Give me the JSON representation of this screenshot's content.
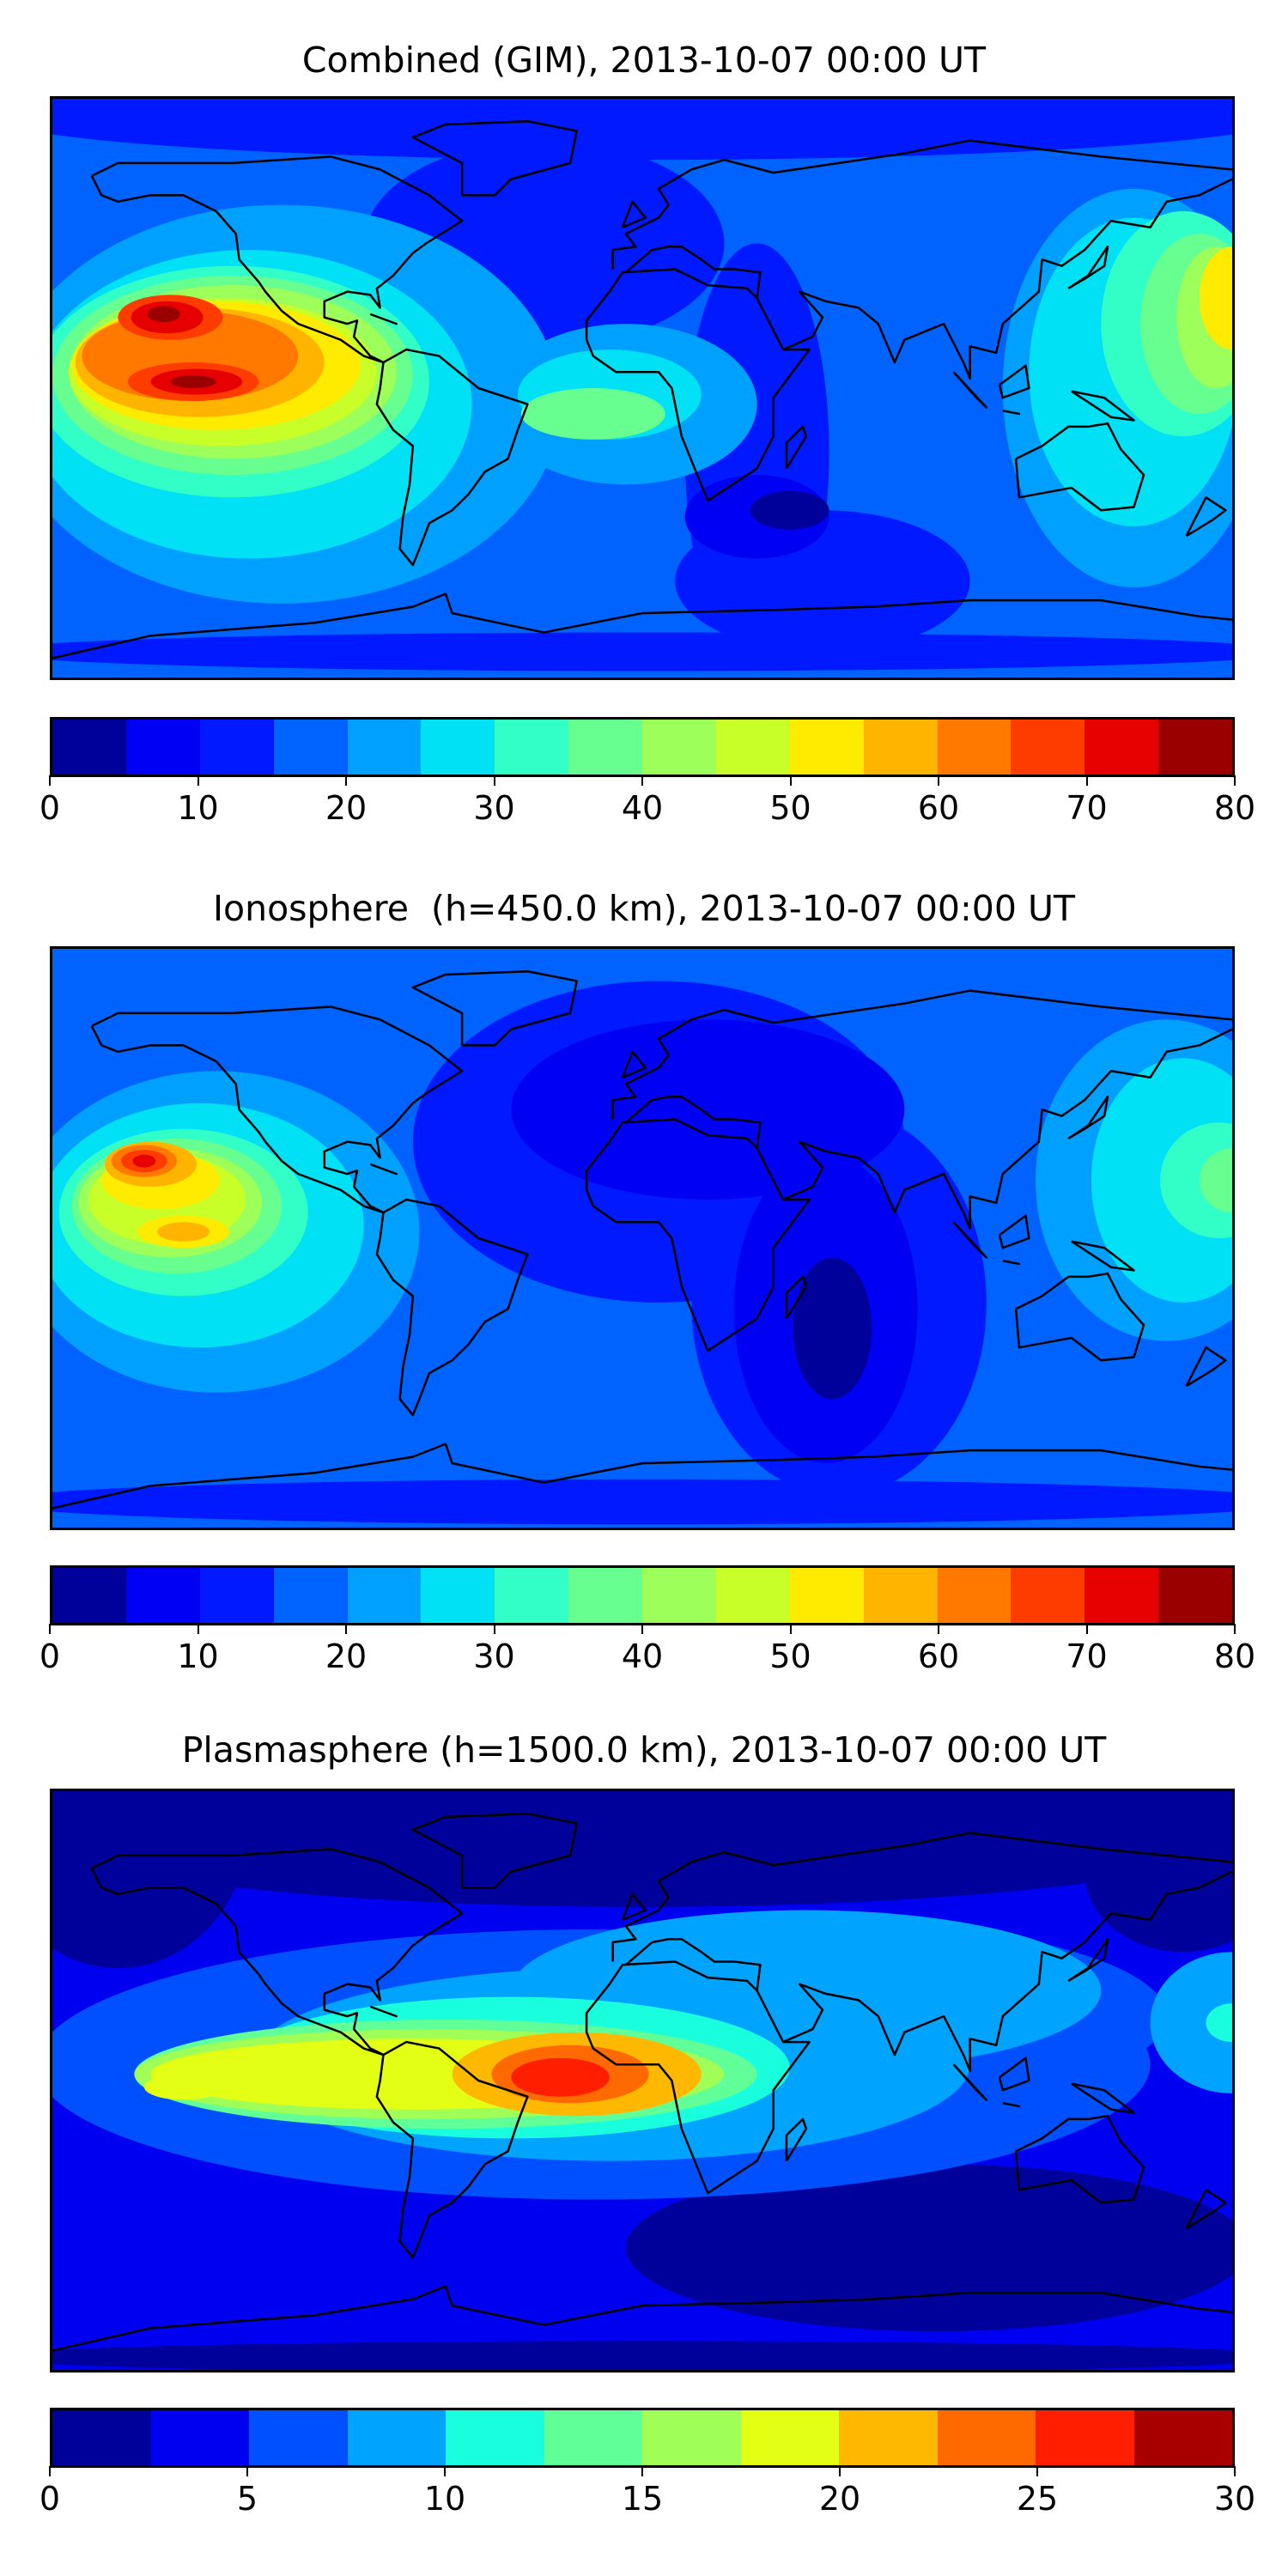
{
  "chart_data": [
    {
      "type": "heatmap",
      "title": "Combined (GIM), 2013-10-07 00:00 UT",
      "colorbar": {
        "ticks": [
          "0",
          "10",
          "20",
          "30",
          "40",
          "50",
          "60",
          "70",
          "80"
        ],
        "range": [
          0,
          80
        ],
        "levels": [
          0,
          5,
          10,
          15,
          20,
          25,
          30,
          35,
          40,
          45,
          50,
          55,
          60,
          65,
          70,
          75,
          80
        ],
        "colors": [
          "#00009a",
          "#0000f5",
          "#0019ff",
          "#0062ff",
          "#00a0ff",
          "#00e1f5",
          "#32ffc8",
          "#66ff90",
          "#9cff5a",
          "#c8ff28",
          "#ffeb00",
          "#ffb400",
          "#ff7800",
          "#ff3c00",
          "#e60000",
          "#9b0000"
        ]
      }
    },
    {
      "type": "heatmap",
      "title": "Ionosphere  (h=450.0 km), 2013-10-07 00:00 UT",
      "colorbar": {
        "ticks": [
          "0",
          "10",
          "20",
          "30",
          "40",
          "50",
          "60",
          "70",
          "80"
        ],
        "range": [
          0,
          80
        ],
        "levels": [
          0,
          5,
          10,
          15,
          20,
          25,
          30,
          35,
          40,
          45,
          50,
          55,
          60,
          65,
          70,
          75,
          80
        ],
        "colors": [
          "#00009a",
          "#0000f5",
          "#0019ff",
          "#0062ff",
          "#00a0ff",
          "#00e1f5",
          "#32ffc8",
          "#66ff90",
          "#9cff5a",
          "#c8ff28",
          "#ffeb00",
          "#ffb400",
          "#ff7800",
          "#ff3c00",
          "#e60000",
          "#9b0000"
        ]
      }
    },
    {
      "type": "heatmap",
      "title": "Plasmasphere (h=1500.0 km), 2013-10-07 00:00 UT",
      "colorbar": {
        "ticks": [
          "0",
          "5",
          "10",
          "15",
          "20",
          "25",
          "30"
        ],
        "range": [
          0,
          30
        ],
        "levels": [
          0,
          2.5,
          5,
          7.5,
          10,
          12.5,
          15,
          17.5,
          20,
          22.5,
          25,
          27.5,
          30
        ],
        "colors": [
          "#00009a",
          "#0000f0",
          "#0050ff",
          "#00a4ff",
          "#19ffde",
          "#60ff97",
          "#a0ff57",
          "#e3ff14",
          "#ffb800",
          "#ff6a00",
          "#ff1e00",
          "#a80000"
        ]
      }
    }
  ]
}
